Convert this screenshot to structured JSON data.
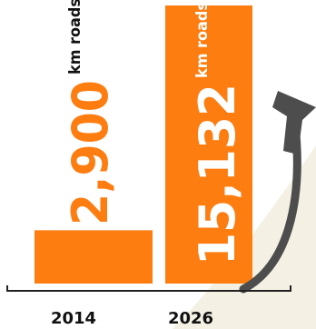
{
  "colors": {
    "bar": "#fd7d11",
    "bar_text_on_orange": "#ffffff",
    "text_dark": "#111111",
    "arrow": "#4d4d4d",
    "swoosh": "#f4f1e4",
    "axis": "#222222"
  },
  "chart_data": {
    "type": "bar",
    "categories": [
      "2014",
      "2026"
    ],
    "values": [
      2900,
      15132
    ],
    "unit_label": "km roads",
    "data_labels": [
      "2,900",
      "15,132"
    ],
    "grid": false,
    "legend": "none"
  }
}
